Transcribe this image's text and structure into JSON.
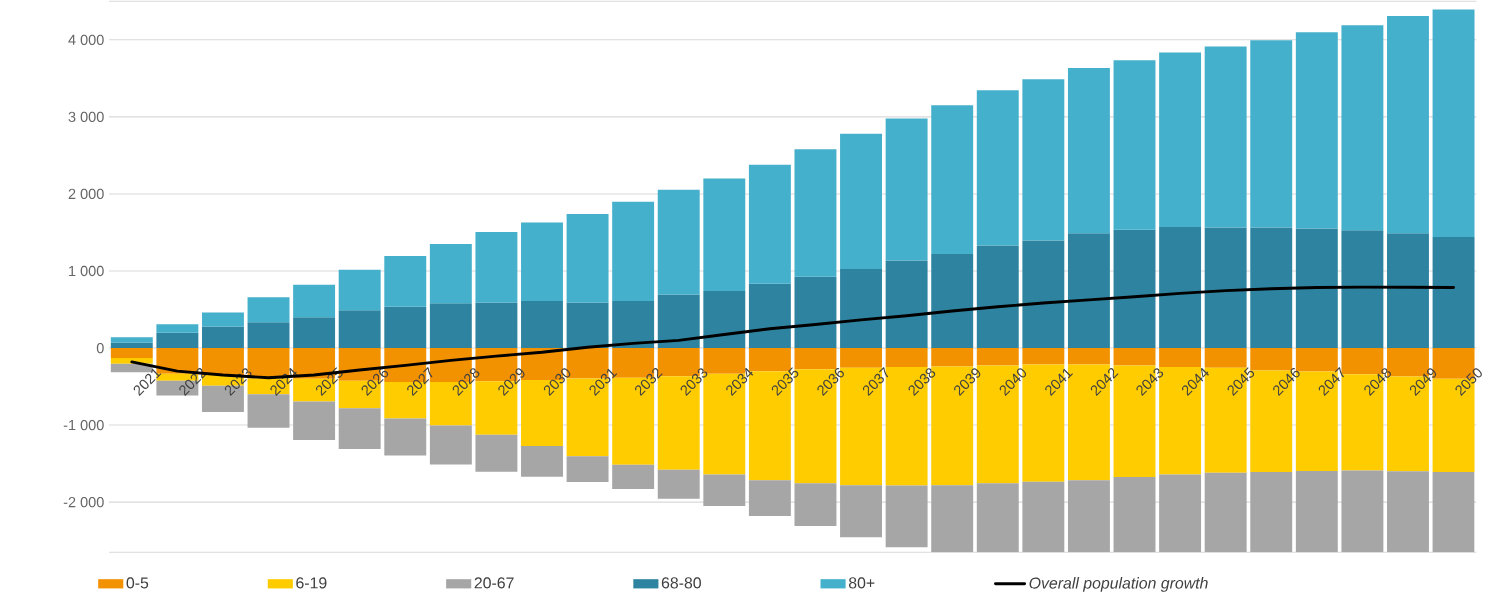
{
  "chart_data": {
    "type": "bar",
    "stacked": true,
    "categories": [
      "2021",
      "2022",
      "2023",
      "2024",
      "2025",
      "2026",
      "2027",
      "2028",
      "2029",
      "2030",
      "2031",
      "2032",
      "2033",
      "2034",
      "2035",
      "2036",
      "2037",
      "2038",
      "2039",
      "2040",
      "2041",
      "2042",
      "2043",
      "2044",
      "2045",
      "2046",
      "2047",
      "2048",
      "2049",
      "2050"
    ],
    "series": [
      {
        "name": "0-5",
        "color": "#f39200",
        "values": [
          -130,
          -335,
          -350,
          -395,
          -400,
          -425,
          -440,
          -440,
          -430,
          -415,
          -395,
          -385,
          -365,
          -335,
          -300,
          -275,
          -255,
          -245,
          -240,
          -225,
          -215,
          -215,
          -225,
          -245,
          -255,
          -290,
          -305,
          -340,
          -370,
          -400
        ]
      },
      {
        "name": "6-19",
        "color": "#ffcc00",
        "values": [
          -75,
          -90,
          -140,
          -205,
          -295,
          -355,
          -475,
          -565,
          -695,
          -855,
          -1010,
          -1130,
          -1215,
          -1305,
          -1415,
          -1480,
          -1525,
          -1540,
          -1540,
          -1530,
          -1520,
          -1500,
          -1450,
          -1395,
          -1365,
          -1320,
          -1290,
          -1250,
          -1230,
          -1210
        ]
      },
      {
        "name": "20-67",
        "color": "#a6a6a6",
        "values": [
          -110,
          -190,
          -340,
          -435,
          -500,
          -530,
          -480,
          -505,
          -480,
          -400,
          -335,
          -315,
          -375,
          -410,
          -465,
          -555,
          -675,
          -800,
          -870,
          -895,
          -915,
          -935,
          -975,
          -1010,
          -1030,
          -1040,
          -1055,
          -1060,
          -1050,
          -1040
        ]
      },
      {
        "name": "68-80",
        "color": "#2e84a0",
        "values": [
          70,
          200,
          280,
          335,
          400,
          490,
          535,
          580,
          590,
          610,
          590,
          610,
          695,
          740,
          835,
          925,
          1025,
          1135,
          1220,
          1330,
          1395,
          1490,
          1535,
          1570,
          1565,
          1565,
          1550,
          1530,
          1490,
          1440
        ]
      },
      {
        "name": "80+",
        "color": "#45b0cc",
        "values": [
          70,
          110,
          180,
          325,
          420,
          525,
          660,
          770,
          915,
          1020,
          1150,
          1290,
          1360,
          1460,
          1545,
          1655,
          1755,
          1845,
          1930,
          2015,
          2095,
          2145,
          2200,
          2265,
          2350,
          2430,
          2550,
          2660,
          2820,
          2955
        ]
      },
      {
        "name": "Overall population growth",
        "type": "line",
        "color": "#000000",
        "values": [
          -180,
          -300,
          -350,
          -385,
          -350,
          -285,
          -225,
          -160,
          -105,
          -55,
          10,
          60,
          100,
          175,
          250,
          305,
          365,
          420,
          480,
          535,
          585,
          625,
          665,
          710,
          745,
          770,
          785,
          790,
          790,
          785
        ]
      }
    ],
    "ylim": [
      -2650,
      4500
    ],
    "yticks": [
      {
        "value": -2000,
        "label": "-2 000"
      },
      {
        "value": -1000,
        "label": "-1 000"
      },
      0,
      {
        "value": 1000,
        "label": "1 000"
      },
      {
        "value": 2000,
        "label": "2 000"
      },
      {
        "value": 3000,
        "label": "3 000"
      },
      {
        "value": 4000,
        "label": "4 000"
      }
    ],
    "grid": "y",
    "legend": "bottom"
  }
}
